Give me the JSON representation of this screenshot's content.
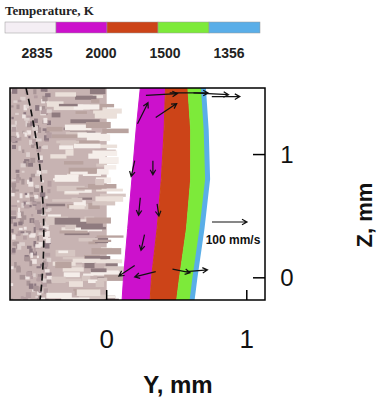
{
  "chart_data": {
    "type": "contour",
    "title": "Temperature, K",
    "colorbar": {
      "levels": [
        2835,
        2000,
        1500,
        1356
      ],
      "colors": [
        "#f4eef4",
        "#cc11cc",
        "#cc4418",
        "#7dea3a",
        "#5aaee8"
      ]
    },
    "isotherms": [
      {
        "level": 2835,
        "y": [
          0.24,
          0.21,
          0.18,
          0.15,
          0.12,
          0.11
        ],
        "z": [
          1.54,
          1.2,
          0.8,
          0.4,
          0,
          -0.18
        ]
      },
      {
        "level": 2000,
        "y": [
          0.42,
          0.41,
          0.39,
          0.36,
          0.32,
          0.31
        ],
        "z": [
          1.54,
          1.2,
          0.8,
          0.4,
          0,
          -0.18
        ]
      },
      {
        "level": 1500,
        "y": [
          0.58,
          0.6,
          0.6,
          0.57,
          0.52,
          0.5
        ],
        "z": [
          1.54,
          1.2,
          0.8,
          0.4,
          0,
          -0.18
        ]
      },
      {
        "level": 1356,
        "y": [
          0.69,
          0.71,
          0.72,
          0.68,
          0.63,
          0.61
        ],
        "z": [
          1.54,
          1.2,
          0.8,
          0.4,
          0,
          -0.18
        ]
      }
    ],
    "vectors": {
      "y": [
        0.28,
        0.45,
        0.62,
        0.75,
        0.22,
        0.35,
        0.2,
        0.33,
        0.24,
        0.36,
        0.27,
        0.2,
        0.35,
        0.47,
        0.57
      ],
      "z": [
        1.48,
        1.5,
        1.5,
        1.47,
        1.25,
        1.3,
        0.95,
        0.95,
        0.65,
        0.6,
        0.35,
        0.1,
        0.05,
        0.07,
        0.05
      ],
      "vy": [
        90,
        110,
        100,
        80,
        30,
        60,
        -10,
        0,
        -5,
        5,
        -10,
        -45,
        -60,
        50,
        60
      ],
      "vz": [
        5,
        0,
        -5,
        0,
        60,
        40,
        -45,
        -40,
        -50,
        -35,
        -45,
        -30,
        -15,
        -10,
        5
      ]
    },
    "reference_vector": {
      "value": 100,
      "label": "100 mm/s"
    },
    "xlabel": "Y, mm",
    "ylabel": "Z, mm",
    "xlim": [
      -0.69,
      1.13
    ],
    "ylim": [
      -0.18,
      1.54
    ],
    "xticks": [
      0,
      1
    ],
    "yticks": [
      0,
      1
    ]
  }
}
